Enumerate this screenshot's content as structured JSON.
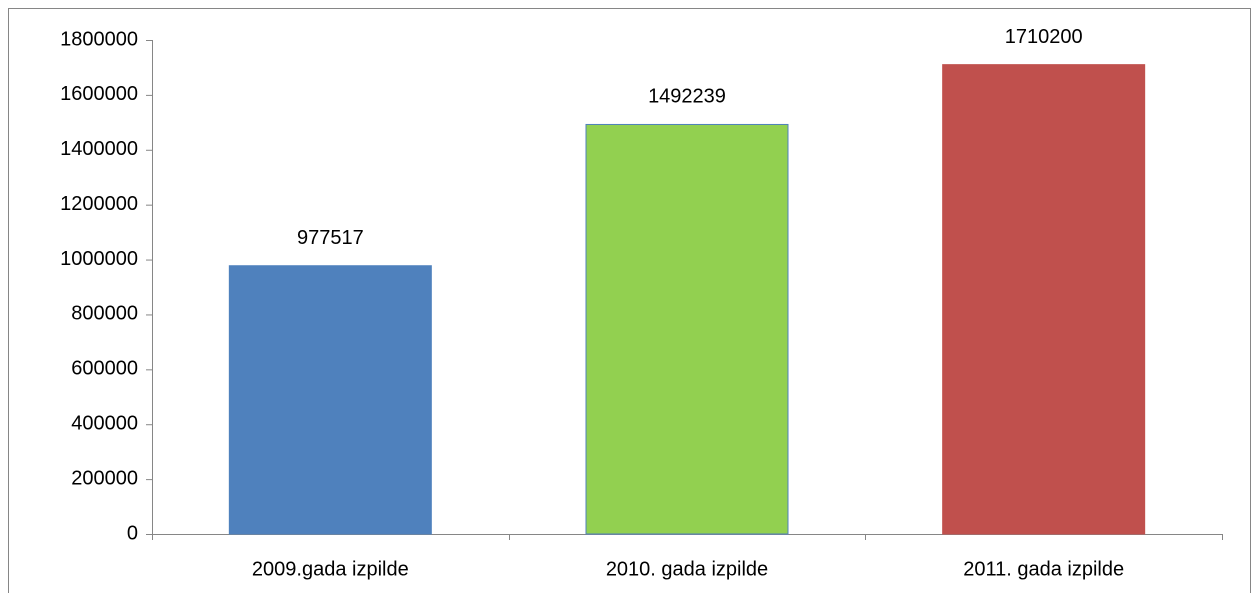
{
  "chart_data": {
    "type": "bar",
    "categories": [
      "2009.gada izpilde",
      "2010. gada izpilde",
      "2011. gada izpilde"
    ],
    "values": [
      977517,
      1492239,
      1710200
    ],
    "colors": [
      "#4f81bd",
      "#92d050",
      "#c0504d"
    ],
    "ylim": [
      0,
      1800000
    ],
    "yticks": [
      0,
      200000,
      400000,
      600000,
      800000,
      1000000,
      1200000,
      1400000,
      1600000,
      1800000
    ],
    "grid": false
  }
}
